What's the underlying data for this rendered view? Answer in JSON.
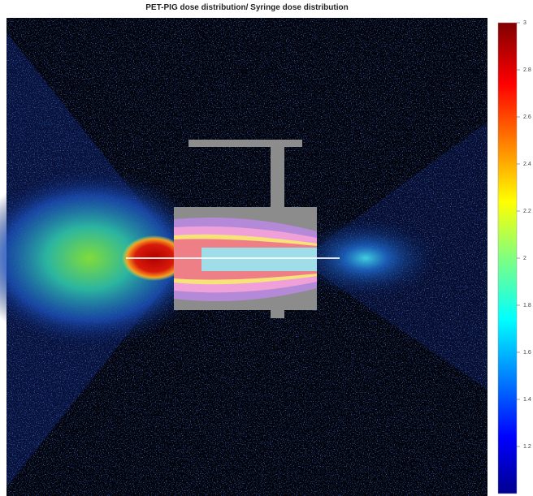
{
  "chart_data": {
    "type": "heatmap",
    "title": "PET-PIG dose distribution/ Syringe dose distribution",
    "clim": [
      1,
      3
    ],
    "cticks": [
      3,
      2.8,
      2.6,
      2.4,
      2.2,
      2,
      1.8,
      1.6,
      1.4,
      1.2
    ],
    "colormap": "jet"
  }
}
